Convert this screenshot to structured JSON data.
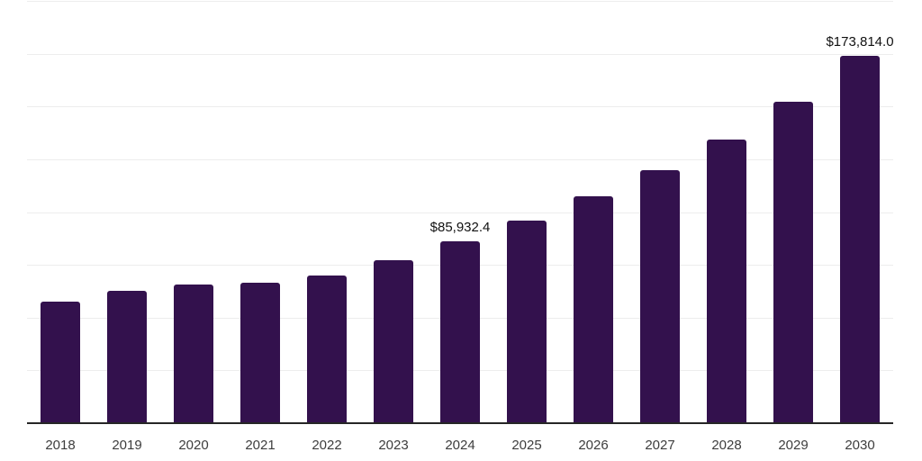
{
  "chart": {
    "background_color": "#ffffff",
    "bar_color": "#33114d",
    "gridline_color": "#ededed",
    "axis_line_color": "#262626",
    "tick_label_color": "#3d3d3d",
    "data_label_color": "#111111"
  },
  "chart_data": {
    "type": "bar",
    "title": "",
    "xlabel": "",
    "ylabel": "",
    "categories": [
      "2018",
      "2019",
      "2020",
      "2021",
      "2022",
      "2023",
      "2024",
      "2025",
      "2026",
      "2027",
      "2028",
      "2029",
      "2030"
    ],
    "values": [
      57500,
      62600,
      65700,
      66500,
      70000,
      77000,
      85932.4,
      95900,
      107300,
      119700,
      134200,
      152300,
      173814.0
    ],
    "data_labels": [
      "",
      "",
      "",
      "",
      "",
      "",
      "$85,932.4",
      "",
      "",
      "",
      "",
      "",
      "$173,814.0"
    ],
    "ylim": [
      0,
      200000
    ],
    "gridline_step": 25000,
    "grid": "horizontal-only",
    "legend": "none",
    "y_axis_tick_labels": "none"
  }
}
